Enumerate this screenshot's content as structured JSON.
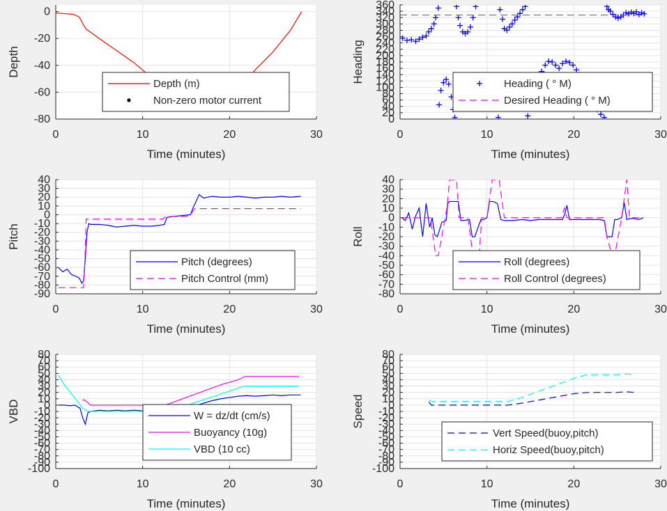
{
  "chart_data": [
    {
      "id": "depth",
      "type": "line",
      "xlabel": "Time (minutes)",
      "ylabel": "Depth",
      "xlim": [
        0,
        30
      ],
      "ylim": [
        -80,
        5
      ],
      "xticks": [
        0,
        10,
        20,
        30
      ],
      "yticks": [
        0,
        -20,
        -40,
        -60,
        -80
      ],
      "grid": true,
      "legend_position": "bottom-right",
      "series": [
        {
          "name": "Depth (m)",
          "color": "#ff0000",
          "style": "solid",
          "x": [
            0,
            1.0,
            2.0,
            2.7,
            3.2,
            3.5,
            5,
            7,
            9,
            11,
            12.5,
            14,
            15.5,
            17,
            17.8,
            18.5,
            19.5,
            20.5,
            21.5,
            23,
            25,
            27,
            28.3
          ],
          "y": [
            -1,
            -1.5,
            -2,
            -4,
            -10,
            -13,
            -20,
            -29,
            -38,
            -49,
            -56,
            -63,
            -68,
            -71,
            -71.5,
            -70,
            -66,
            -61,
            -54,
            -43,
            -30,
            -14,
            0
          ]
        },
        {
          "name": "Non-zero motor current",
          "color": "#000000",
          "style": "dots",
          "x": [
            13,
            13.5,
            14,
            14.5,
            15,
            15.5,
            16,
            16.5,
            17,
            17.5,
            18,
            18.5,
            19,
            19.5,
            20,
            20.5,
            21,
            21.5
          ],
          "y": [
            -61.5,
            -63,
            -64.5,
            -66,
            -67.5,
            -68.5,
            -69.5,
            -70.5,
            -71,
            -71.3,
            -71.2,
            -70.5,
            -69.5,
            -67.5,
            -65,
            -62,
            -58,
            -54
          ]
        }
      ]
    },
    {
      "id": "heading",
      "type": "scatter",
      "xlabel": "Time (minutes)",
      "ylabel": "Heading",
      "xlim": [
        0,
        30
      ],
      "ylim": [
        0,
        360
      ],
      "xticks": [
        0,
        10,
        20,
        30
      ],
      "yticks": [
        0,
        20,
        40,
        60,
        80,
        100,
        120,
        140,
        160,
        180,
        200,
        220,
        240,
        260,
        280,
        300,
        320,
        340,
        360
      ],
      "grid": true,
      "legend_position": "bottom-right",
      "series": [
        {
          "name": "Heading (  ° M)",
          "color": "#0000ff",
          "style": "plus",
          "x": [
            0.3,
            0.8,
            1.3,
            1.8,
            2.2,
            2.6,
            3.0,
            3.3,
            3.6,
            3.9,
            4.1,
            4.4,
            4.5,
            4.7,
            5.0,
            5.3,
            5.6,
            5.9,
            6.1,
            6.3,
            6.5,
            6.7,
            6.9,
            7.2,
            7.5,
            7.8,
            8.1,
            8.4,
            8.7,
            8.9,
            9.1,
            9.3,
            9.5,
            9.8,
            10.1,
            10.4,
            10.7,
            11.0,
            11.3,
            11.5,
            11.8,
            12.0,
            12.3,
            12.6,
            12.9,
            13.2,
            13.5,
            13.8,
            14.1,
            14.4,
            14.7,
            15.0,
            15.3,
            15.5,
            15.9,
            16.3,
            16.7,
            17.1,
            17.5,
            17.9,
            18.3,
            18.7,
            19.1,
            19.5,
            19.9,
            20.3,
            20.7,
            21.1,
            21.5,
            21.9,
            22.3,
            22.7,
            23.1,
            23.5,
            23.8,
            24.0,
            24.2,
            24.5,
            24.8,
            25.1,
            25.4,
            25.7,
            26.0,
            26.3,
            26.6,
            26.9,
            27.2,
            27.5,
            27.8,
            28.1
          ],
          "y": [
            255,
            248,
            250,
            245,
            252,
            258,
            262,
            275,
            285,
            300,
            320,
            350,
            45,
            90,
            115,
            125,
            110,
            70,
            30,
            5,
            355,
            320,
            295,
            275,
            270,
            275,
            290,
            320,
            355,
            60,
            95,
            105,
            110,
            105,
            100,
            95,
            80,
            40,
            5,
            345,
            315,
            285,
            280,
            290,
            300,
            312,
            322,
            333,
            345,
            355,
            10,
            40,
            70,
            95,
            125,
            150,
            170,
            182,
            180,
            170,
            160,
            175,
            182,
            178,
            170,
            155,
            140,
            115,
            90,
            65,
            45,
            30,
            15,
            5,
            355,
            345,
            340,
            330,
            322,
            318,
            322,
            328,
            335,
            332,
            337,
            333,
            338,
            330,
            335,
            332
          ]
        },
        {
          "name": "Desired Heading (    ° M)",
          "color": "#ff00ff",
          "style": "dashed",
          "x": [
            0,
            28.3
          ],
          "y": [
            328,
            328
          ]
        }
      ]
    },
    {
      "id": "pitch",
      "type": "line",
      "xlabel": "Time (minutes)",
      "ylabel": "Pitch",
      "xlim": [
        0,
        30
      ],
      "ylim": [
        -90,
        40
      ],
      "xticks": [
        0,
        10,
        20,
        30
      ],
      "yticks": [
        40,
        30,
        20,
        10,
        0,
        -10,
        -20,
        -30,
        -40,
        -50,
        -60,
        -70,
        -80,
        -90
      ],
      "grid": true,
      "legend_position": "bottom-right",
      "series": [
        {
          "name": "Pitch (degrees)",
          "color": "#0000ff",
          "style": "solid",
          "x": [
            0.3,
            0.8,
            1.3,
            1.8,
            2.3,
            2.7,
            3.0,
            3.2,
            3.4,
            3.6,
            3.8,
            4.0,
            5,
            6,
            7,
            8,
            9,
            10,
            11,
            12,
            12.5,
            12.8,
            13.5,
            14.5,
            15.5,
            15.8,
            16.1,
            16.5,
            17,
            18,
            19,
            20,
            21,
            22,
            23,
            24,
            25,
            26,
            27,
            28.2
          ],
          "y": [
            -60,
            -65,
            -62,
            -68,
            -70,
            -72,
            -78,
            -75,
            -50,
            -20,
            -10,
            -11,
            -11,
            -12,
            -14,
            -13,
            -12,
            -13,
            -13,
            -12,
            -11,
            -3,
            -2,
            -1,
            0,
            8,
            14,
            23,
            19,
            21,
            20,
            20,
            21,
            20,
            19,
            20,
            20,
            21,
            20,
            21
          ]
        },
        {
          "name": "Pitch Control (mm)",
          "color": "#ff00ff",
          "style": "dashed",
          "x": [
            0.3,
            3.2,
            3.4,
            3.5,
            12.3,
            12.7,
            15.0,
            15.5,
            16.0,
            28.2
          ],
          "y": [
            -83,
            -83,
            -40,
            -5,
            -5,
            -2,
            -2,
            0,
            7,
            7
          ]
        }
      ]
    },
    {
      "id": "roll",
      "type": "line",
      "xlabel": "Time (minutes)",
      "ylabel": "Roll",
      "xlim": [
        0,
        30
      ],
      "ylim": [
        -80,
        40
      ],
      "xticks": [
        0,
        10,
        20,
        30
      ],
      "yticks": [
        40,
        30,
        20,
        10,
        0,
        -10,
        -20,
        -30,
        -40,
        -50,
        -60,
        -70,
        -80
      ],
      "grid": true,
      "legend_position": "bottom-right",
      "series": [
        {
          "name": "Roll (degrees)",
          "color": "#0000ff",
          "style": "solid",
          "x": [
            0.2,
            0.6,
            1.0,
            1.4,
            1.8,
            2.2,
            2.6,
            3.0,
            3.4,
            3.7,
            4.0,
            4.3,
            4.8,
            5.3,
            5.5,
            5.7,
            6.7,
            7.0,
            7.3,
            8.0,
            8.3,
            8.6,
            9.3,
            9.6,
            10.0,
            10.3,
            10.7,
            11.2,
            11.6,
            12.0,
            13,
            14,
            15,
            16,
            17,
            18,
            18.7,
            19.0,
            19.2,
            19.5,
            20,
            21,
            22,
            23,
            23.5,
            23.8,
            24.4,
            24.7,
            25.0,
            25.5,
            25.8,
            26.1,
            26.4,
            27,
            27.5,
            28.0
          ],
          "y": [
            0,
            -3,
            5,
            -12,
            2,
            10,
            -20,
            15,
            -10,
            0,
            -18,
            -20,
            -5,
            -3,
            15,
            17,
            17,
            -3,
            -3,
            -2,
            -20,
            -20,
            -2,
            -2,
            0,
            17,
            17,
            15,
            -2,
            -3,
            -3,
            -2,
            -3,
            -2,
            -2,
            -2,
            -2,
            5,
            13,
            -2,
            -2,
            -2,
            -2,
            -2,
            -3,
            -20,
            -20,
            -2,
            -2,
            0,
            16,
            -2,
            -1,
            -1,
            -2,
            0
          ]
        },
        {
          "name": "Roll Control (degrees)",
          "color": "#ff00ff",
          "style": "dashed",
          "x": [
            0.2,
            3.5,
            3.8,
            4.1,
            4.4,
            5.0,
            5.4,
            5.7,
            6.5,
            6.8,
            7.8,
            8.1,
            8.4,
            9.1,
            9.4,
            10.0,
            10.3,
            10.6,
            11.4,
            11.7,
            12.0,
            18.6,
            18.9,
            19.2,
            23.5,
            23.8,
            24.4,
            24.7,
            25.5,
            25.8,
            26.1,
            26.4,
            28.0
          ],
          "y": [
            0,
            0,
            -20,
            -40,
            -40,
            -10,
            10,
            40,
            40,
            0,
            0,
            -20,
            -40,
            -40,
            0,
            0,
            20,
            40,
            40,
            20,
            0,
            0,
            10,
            0,
            0,
            -20,
            -40,
            -40,
            0,
            20,
            40,
            0,
            0
          ]
        }
      ]
    },
    {
      "id": "vbd",
      "type": "line",
      "xlabel": "Time (minutes)",
      "ylabel": "VBD",
      "xlim": [
        0,
        30
      ],
      "ylim": [
        -100,
        80
      ],
      "xticks": [
        0,
        10,
        20,
        30
      ],
      "yticks": [
        80,
        70,
        60,
        50,
        40,
        30,
        20,
        10,
        0,
        -10,
        -20,
        -30,
        -40,
        -50,
        -60,
        -70,
        -80,
        -90,
        -100
      ],
      "ytick_labels": [
        "80",
        "70",
        "60",
        "50",
        "40",
        "30",
        "20",
        "10",
        "0",
        "-10",
        "-20",
        "-30",
        "-40",
        "-50",
        "-60",
        "-70",
        "-80",
        "-90",
        "-100"
      ],
      "grid": true,
      "legend_position": "bottom-right",
      "series": [
        {
          "name": "W = dz/dt (cm/s)",
          "color": "#0000ff",
          "style": "solid",
          "x": [
            0.3,
            1.0,
            1.6,
            2.2,
            2.8,
            3.1,
            3.4,
            3.7,
            4.0,
            5,
            6,
            7,
            8,
            9,
            10,
            11,
            12,
            12.5,
            13,
            14,
            15,
            16,
            17,
            18,
            19,
            20,
            21,
            22,
            23,
            24,
            25,
            26,
            27,
            28.2
          ],
          "y": [
            0,
            0,
            -1,
            0,
            -5,
            -20,
            -30,
            -12,
            -10,
            -8,
            -9,
            -8,
            -9,
            -8,
            -9,
            -9,
            -9,
            -8,
            -7,
            -6,
            -4,
            -1,
            3,
            7,
            10,
            12,
            14,
            15,
            14,
            15,
            16,
            15,
            16,
            16
          ]
        },
        {
          "name": "Buoyancy (10g)",
          "color": "#ff00ff",
          "style": "solid",
          "x": [
            3.1,
            3.3,
            3.6,
            4.0,
            5,
            8,
            10,
            12.5,
            13,
            15,
            17,
            19,
            21,
            21.8,
            23,
            25,
            28.0
          ],
          "y": [
            8,
            8,
            5,
            0,
            0,
            0,
            0,
            0,
            2,
            12,
            22,
            32,
            40,
            45,
            45,
            45,
            45
          ]
        },
        {
          "name": "VBD (10 cc)",
          "color": "#00ffff",
          "style": "solid",
          "x": [
            0.3,
            1.0,
            1.8,
            2.6,
            3.1,
            3.6,
            4.0,
            6,
            8,
            10,
            12.0,
            12.7,
            14,
            16,
            18,
            20,
            21,
            21.8,
            23,
            25,
            27,
            28.0
          ],
          "y": [
            47,
            32,
            18,
            4,
            -5,
            -9,
            -10,
            -10,
            -10,
            -10,
            -10,
            -10,
            -6,
            4,
            13,
            22,
            27,
            30,
            30,
            30,
            30,
            30
          ]
        }
      ]
    },
    {
      "id": "speed",
      "type": "line",
      "xlabel": "Time (minutes)",
      "ylabel": "Speed",
      "xlim": [
        0,
        30
      ],
      "ylim": [
        -100,
        80
      ],
      "xticks": [
        0,
        10,
        20,
        30
      ],
      "yticks": [
        80,
        70,
        60,
        50,
        40,
        30,
        20,
        10,
        0,
        -10,
        -20,
        -30,
        -40,
        -50,
        -60,
        -70,
        -80,
        -90,
        -100
      ],
      "ytick_labels": [
        "80",
        "70",
        "60",
        "50",
        "40",
        "30",
        "20",
        "10",
        "0",
        "-10",
        "-20",
        "-30",
        "-40",
        "-50",
        "-60",
        "-70",
        "-80",
        "-90",
        "-100"
      ],
      "grid": true,
      "legend_position": "bottom-right",
      "series": [
        {
          "name": "Vert Speed(buoy,pitch)",
          "color": "#0000ff",
          "style": "dashed",
          "x": [
            3.3,
            3.6,
            4.0,
            6,
            8,
            10,
            12.5,
            14,
            16,
            18,
            20,
            21.5,
            23,
            25,
            26,
            27.0
          ],
          "y": [
            5,
            0,
            0,
            0,
            0,
            0,
            0,
            3,
            8,
            13,
            18,
            20,
            20,
            20,
            21,
            20
          ]
        },
        {
          "name": "Horiz Speed(buoy,pitch)",
          "color": "#00ffff",
          "style": "dashed",
          "x": [
            3.3,
            3.6,
            4.0,
            6,
            8,
            10,
            12.5,
            14,
            16,
            18,
            20,
            21.5,
            23,
            25,
            26,
            27.0
          ],
          "y": [
            8,
            6,
            6,
            6,
            6,
            6,
            6,
            12,
            22,
            32,
            42,
            48,
            48,
            48,
            49,
            48
          ]
        }
      ]
    }
  ]
}
